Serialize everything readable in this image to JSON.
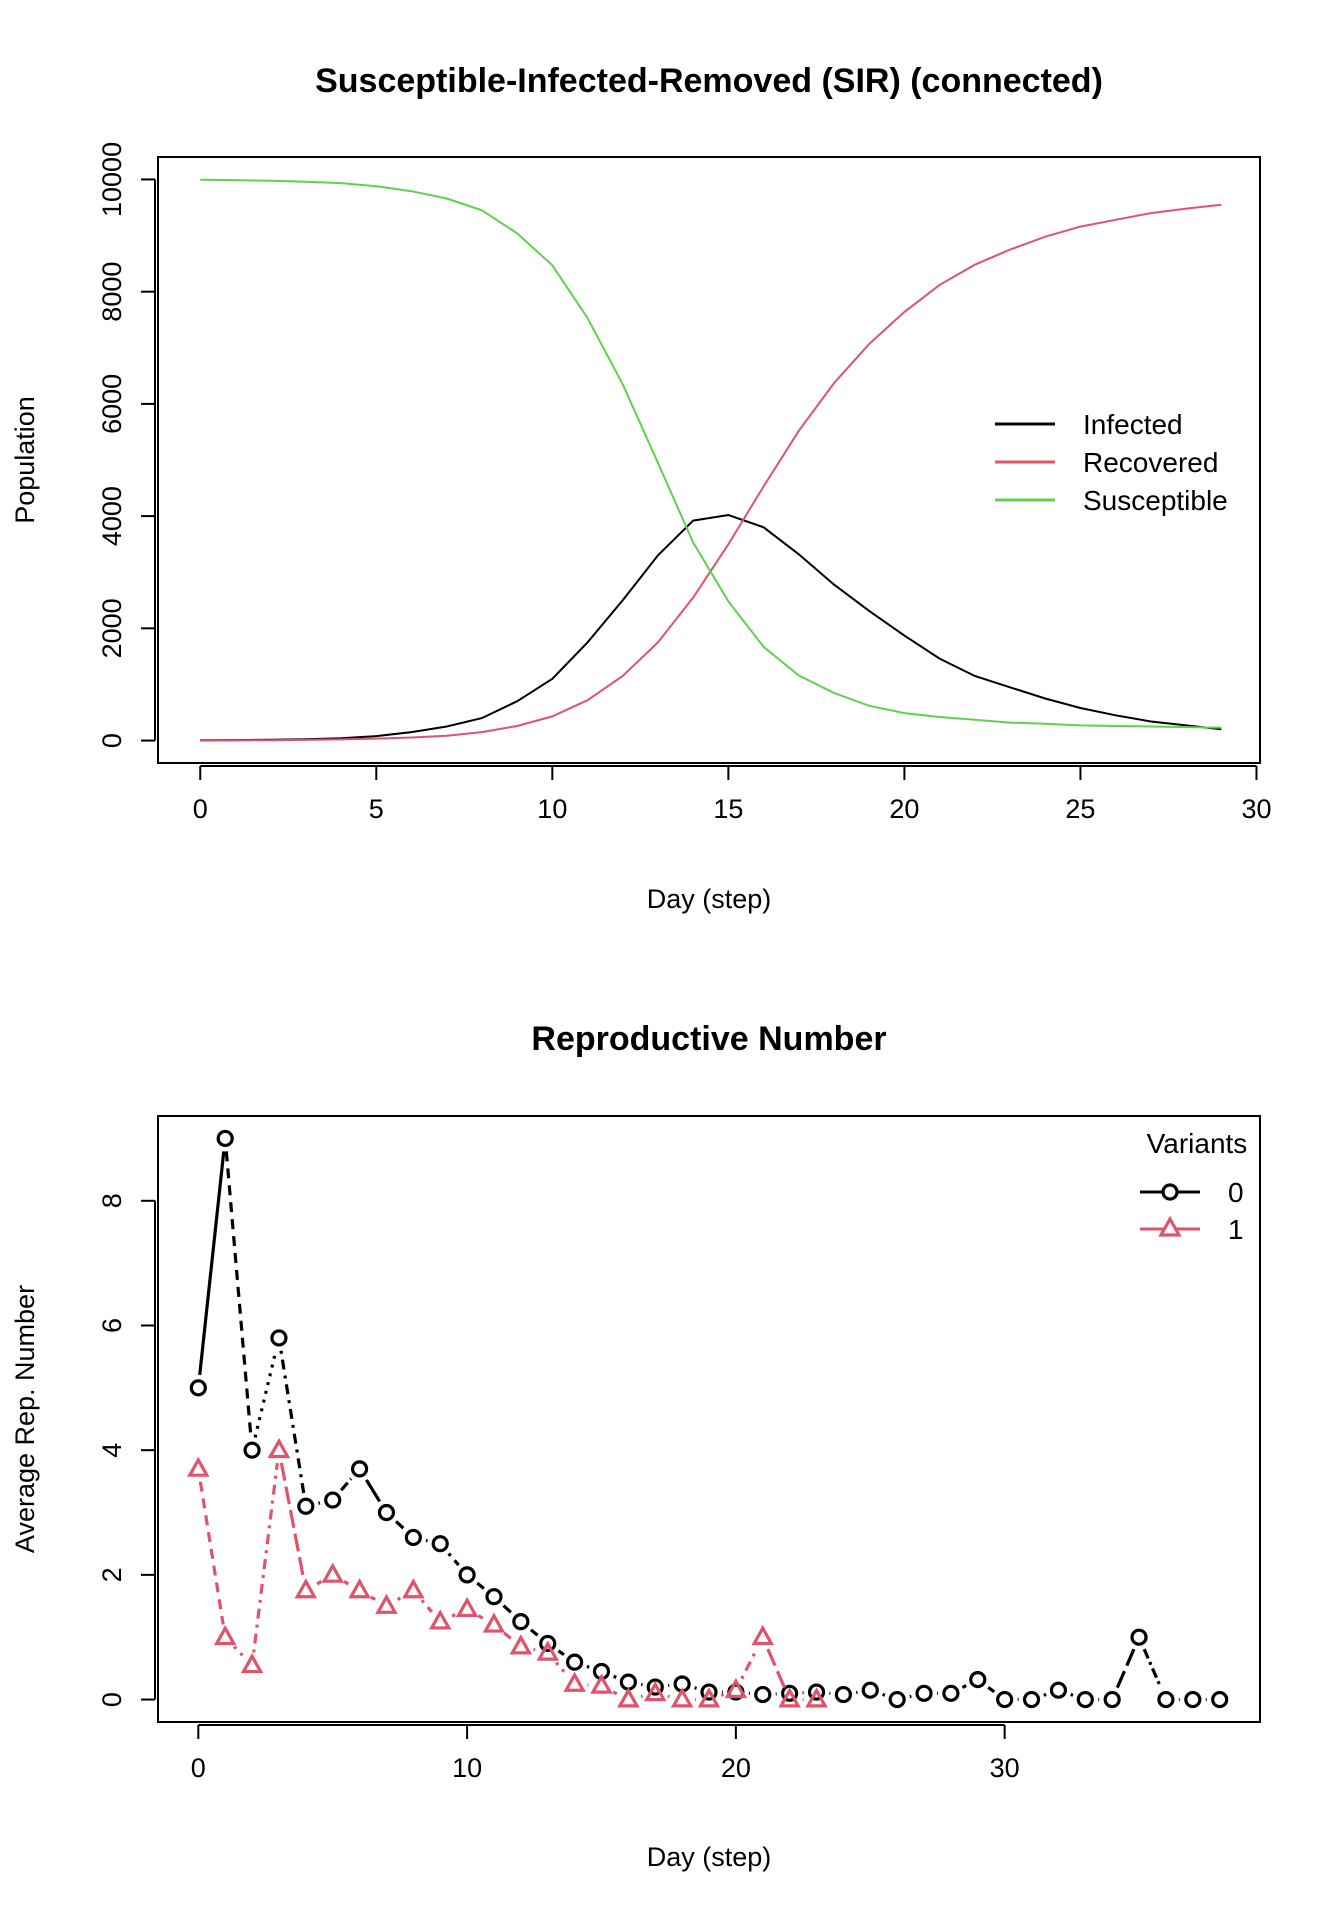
{
  "colors": {
    "black": "#000000",
    "red": "#DF536B",
    "green": "#61D04F"
  },
  "chart_data": [
    {
      "type": "line",
      "title": "Susceptible-Infected-Removed (SIR) (connected)",
      "xlabel": "Day (step)",
      "ylabel": "Population",
      "xlim": [
        -1.2,
        30.1
      ],
      "ylim": [
        -400,
        10400
      ],
      "xticks": [
        0,
        5,
        10,
        15,
        20,
        25,
        30
      ],
      "xtick_labels": [
        "0",
        "5",
        "10",
        "15",
        "20",
        "25",
        "30"
      ],
      "yticks": [
        0,
        2000,
        4000,
        6000,
        8000,
        10000
      ],
      "ytick_labels": [
        "0",
        "2000",
        "4000",
        "6000",
        "8000",
        "10000"
      ],
      "grid": false,
      "legend_position": "right",
      "x": [
        0,
        1,
        2,
        3,
        4,
        5,
        6,
        7,
        8,
        9,
        10,
        11,
        12,
        13,
        14,
        15,
        16,
        17,
        18,
        19,
        20,
        21,
        22,
        23,
        24,
        25,
        26,
        27,
        28,
        29
      ],
      "series": [
        {
          "name": "Infected",
          "color": "#000000",
          "values": [
            5,
            8,
            15,
            25,
            40,
            80,
            150,
            250,
            400,
            700,
            1100,
            1750,
            2500,
            3300,
            3920,
            4020,
            3800,
            3320,
            2780,
            2310,
            1870,
            1460,
            1150,
            950,
            750,
            580,
            450,
            340,
            270,
            200
          ]
        },
        {
          "name": "Recovered",
          "color": "#DF536B",
          "values": [
            0,
            3,
            7,
            12,
            20,
            35,
            55,
            85,
            150,
            260,
            430,
            720,
            1150,
            1750,
            2550,
            3500,
            4530,
            5520,
            6370,
            7070,
            7640,
            8120,
            8480,
            8750,
            8980,
            9160,
            9280,
            9400,
            9480,
            9550
          ]
        },
        {
          "name": "Susceptible",
          "color": "#61D04F",
          "values": [
            9995,
            9988,
            9975,
            9960,
            9935,
            9880,
            9790,
            9660,
            9450,
            9040,
            8470,
            7530,
            6350,
            4950,
            3530,
            2480,
            1670,
            1160,
            850,
            620,
            490,
            420,
            370,
            320,
            300,
            270,
            260,
            250,
            240,
            230
          ]
        }
      ]
    },
    {
      "type": "line",
      "title": "Reproductive Number",
      "xlabel": "Day (step)",
      "ylabel": "Average Rep. Number",
      "xlim": [
        -1.5,
        39.5
      ],
      "ylim": [
        -0.36,
        9.36
      ],
      "xticks": [
        0,
        10,
        20,
        30
      ],
      "xtick_labels": [
        "0",
        "10",
        "20",
        "30"
      ],
      "yticks": [
        0,
        2,
        4,
        6,
        8
      ],
      "ytick_labels": [
        "0",
        "2",
        "4",
        "6",
        "8"
      ],
      "grid": false,
      "legend_title": "Variants",
      "legend_position": "top-right",
      "series": [
        {
          "name": "0",
          "color": "#000000",
          "marker": "circle",
          "x": [
            0,
            1,
            2,
            3,
            4,
            5,
            6,
            7,
            8,
            9,
            10,
            11,
            12,
            13,
            14,
            15,
            16,
            17,
            18,
            19,
            20,
            21,
            22,
            23,
            24,
            25,
            26,
            27,
            28,
            29,
            30,
            31,
            32,
            33,
            34,
            35,
            36,
            37,
            38
          ],
          "values": [
            5,
            9,
            4,
            5.8,
            3.1,
            3.2,
            3.7,
            3.0,
            2.6,
            2.5,
            2.0,
            1.65,
            1.25,
            0.9,
            0.6,
            0.45,
            0.28,
            0.2,
            0.25,
            0.12,
            0.12,
            0.08,
            0.1,
            0.12,
            0.08,
            0.15,
            0.0,
            0.1,
            0.1,
            0.32,
            0.0,
            0.0,
            0.15,
            0.0,
            0.0,
            1.0,
            0.0,
            0.0,
            0.0
          ]
        },
        {
          "name": "1",
          "color": "#DF536B",
          "marker": "triangle",
          "x": [
            0,
            1,
            2,
            3,
            4,
            5,
            6,
            7,
            8,
            9,
            10,
            11,
            12,
            13,
            14,
            15,
            16,
            17,
            18,
            19,
            20,
            21,
            22,
            23
          ],
          "values": [
            3.7,
            1.0,
            0.55,
            4.0,
            1.75,
            2.0,
            1.75,
            1.5,
            1.75,
            1.25,
            1.45,
            1.2,
            0.85,
            0.75,
            0.25,
            0.22,
            0.0,
            0.1,
            0.0,
            0.0,
            0.15,
            1.0,
            0.0,
            0.0
          ]
        }
      ]
    }
  ]
}
